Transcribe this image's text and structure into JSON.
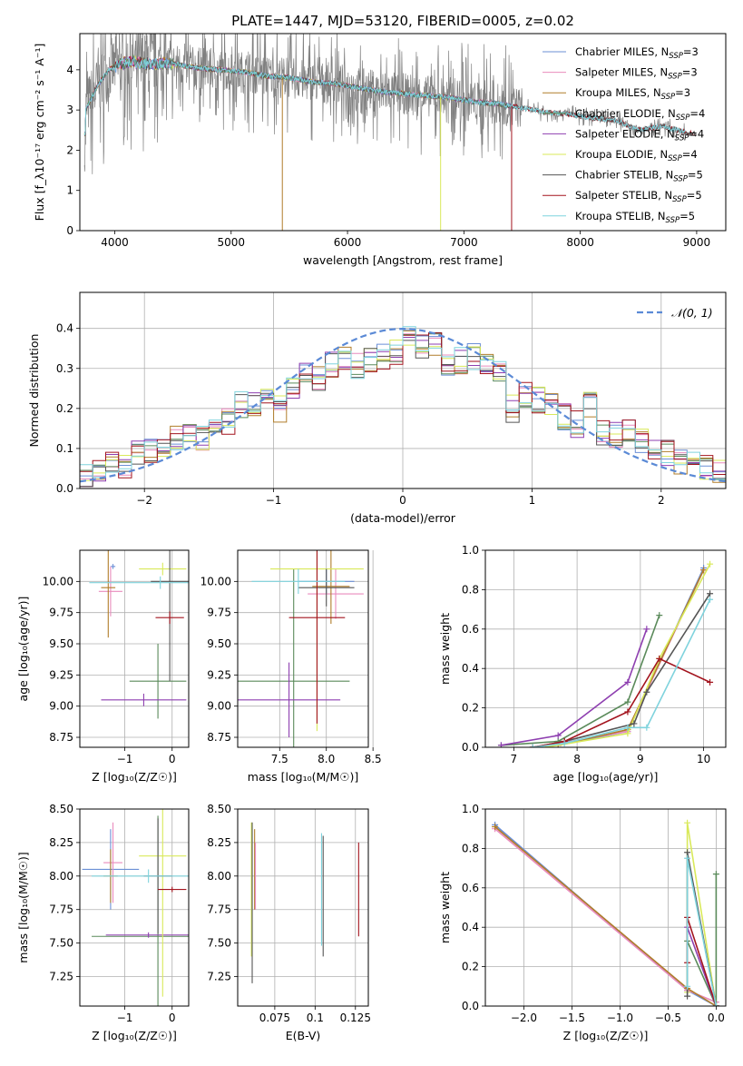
{
  "figure": {
    "title": "PLATE=1447, MJD=53120, FIBERID=0005, z=0.02"
  },
  "colors": [
    "#6b8fd6",
    "#e98bbd",
    "#b07d2a",
    "#5a8a5a",
    "#8e3fb0",
    "#d9e95a",
    "#555555",
    "#a3141e",
    "#7fd3dd"
  ],
  "chart_data": [
    {
      "id": "spectrum",
      "type": "line",
      "xlabel": "wavelength [Angstrom, rest frame]",
      "ylabel": "Flux [f_λ10⁻¹⁷ erg cm⁻² s⁻¹ A⁻¹]",
      "xlim": [
        3700,
        9250
      ],
      "ylim": [
        0,
        4.9
      ],
      "xticks": [
        4000,
        5000,
        6000,
        7000,
        8000,
        9000
      ],
      "yticks": [
        0,
        1,
        2,
        3,
        4
      ],
      "legend": "top-right",
      "series": [
        {
          "name": "Chabrier MILES, N_SSP=3",
          "color": "#6b8fd6"
        },
        {
          "name": "Salpeter MILES, N_SSP=3",
          "color": "#e98bbd"
        },
        {
          "name": "Kroupa MILES, N_SSP=3",
          "color": "#b07d2a"
        },
        {
          "name": "Chabrier ELODIE, N_SSP=4",
          "color": "#5a8a5a"
        },
        {
          "name": "Salpeter ELODIE, N_SSP=4",
          "color": "#8e3fb0"
        },
        {
          "name": "Kroupa ELODIE, N_SSP=4",
          "color": "#d9e95a"
        },
        {
          "name": "Chabrier STELIB, N_SSP=5",
          "color": "#555555"
        },
        {
          "name": "Salpeter STELIB, N_SSP=5",
          "color": "#a3141e"
        },
        {
          "name": "Kroupa STELIB, N_SSP=5",
          "color": "#7fd3dd"
        }
      ],
      "continuum": {
        "x": [
          3750,
          3850,
          3950,
          4050,
          4150,
          4300,
          4500,
          4700,
          4900,
          5100,
          5300,
          5500,
          5700,
          5900,
          6100,
          6300,
          6500,
          6700,
          6900,
          7100,
          7300,
          7500,
          7700,
          7900,
          8100,
          8300,
          8500,
          8700,
          8900,
          9000
        ],
        "y": [
          3.0,
          3.6,
          4.0,
          4.15,
          4.2,
          4.15,
          4.15,
          4.05,
          4.0,
          3.95,
          3.85,
          3.8,
          3.7,
          3.65,
          3.55,
          3.45,
          3.4,
          3.35,
          3.3,
          3.2,
          3.15,
          3.05,
          2.95,
          2.9,
          2.8,
          2.75,
          2.5,
          2.6,
          2.45,
          2.4
        ]
      }
    },
    {
      "id": "residuals",
      "type": "bar",
      "xlabel": "(data-model)/error",
      "ylabel": "Normed distribution",
      "xlim": [
        -2.5,
        2.5
      ],
      "ylim": [
        0,
        0.49
      ],
      "xticks": [
        -2,
        -1,
        0,
        1,
        2
      ],
      "yticks": [
        0.0,
        0.1,
        0.2,
        0.3,
        0.4
      ],
      "legend": "top-right",
      "reference": {
        "name": "𝒩(0, 1)",
        "color": "#5b8ad6"
      },
      "bin_width": 0.1,
      "bins_left": [
        -2.5,
        -2.4,
        -2.3,
        -2.2,
        -2.1,
        -2.0,
        -1.9,
        -1.8,
        -1.7,
        -1.6,
        -1.5,
        -1.4,
        -1.3,
        -1.2,
        -1.1,
        -1.0,
        -0.9,
        -0.8,
        -0.7,
        -0.6,
        -0.5,
        -0.4,
        -0.3,
        -0.2,
        -0.1,
        0.0,
        0.1,
        0.2,
        0.3,
        0.4,
        0.5,
        0.6,
        0.7,
        0.8,
        0.9,
        1.0,
        1.1,
        1.2,
        1.3,
        1.4,
        1.5,
        1.6,
        1.7,
        1.8,
        1.9,
        2.0,
        2.1,
        2.2,
        2.3,
        2.4
      ],
      "values": [
        0.03,
        0.04,
        0.06,
        0.06,
        0.09,
        0.09,
        0.1,
        0.13,
        0.15,
        0.13,
        0.17,
        0.17,
        0.21,
        0.21,
        0.23,
        0.2,
        0.25,
        0.29,
        0.27,
        0.31,
        0.33,
        0.31,
        0.32,
        0.33,
        0.34,
        0.38,
        0.35,
        0.36,
        0.31,
        0.32,
        0.33,
        0.31,
        0.3,
        0.2,
        0.23,
        0.22,
        0.21,
        0.18,
        0.16,
        0.21,
        0.14,
        0.13,
        0.14,
        0.12,
        0.09,
        0.09,
        0.07,
        0.06,
        0.05,
        0.04
      ]
    },
    {
      "id": "age-vs-Z",
      "type": "scatter",
      "xlabel": "Z [log₁₀(Z/Z☉)]",
      "ylabel": "age  [log₁₀(age/yr)]",
      "xlim": [
        -1.95,
        0.35
      ],
      "ylim": [
        8.67,
        10.25
      ],
      "xticks": [
        -1,
        0
      ],
      "yticks": [
        8.75,
        9.0,
        9.25,
        9.5,
        9.75,
        10.0
      ],
      "points": [
        {
          "x": -1.25,
          "y": 10.12,
          "xerr": 0.05,
          "yerr": 0.02,
          "c": 0
        },
        {
          "x": -1.3,
          "y": 9.92,
          "xerr": 0.25,
          "yerr": 0.2,
          "c": 1
        },
        {
          "x": -1.35,
          "y": 9.95,
          "xerr": 0.15,
          "yerr": 0.4,
          "c": 2
        },
        {
          "x": -0.3,
          "y": 9.2,
          "xerr": 0.6,
          "yerr": 0.3,
          "c": 3
        },
        {
          "x": -0.6,
          "y": 9.05,
          "xerr": 0.9,
          "yerr": 0.05,
          "c": 4
        },
        {
          "x": -0.2,
          "y": 10.1,
          "xerr": 0.5,
          "yerr": 0.05,
          "c": 5
        },
        {
          "x": -0.05,
          "y": 10.0,
          "xerr": 0.4,
          "yerr": 0.8,
          "c": 6
        },
        {
          "x": -0.05,
          "y": 9.71,
          "xerr": 0.3,
          "yerr": 0.05,
          "c": 7
        },
        {
          "x": -0.25,
          "y": 9.99,
          "xerr": 1.5,
          "yerr": 0.05,
          "c": 8
        }
      ]
    },
    {
      "id": "age-vs-mass",
      "type": "scatter",
      "xlabel": "mass [log₁₀(M/M☉)]",
      "ylabel": "",
      "xlim": [
        7.05,
        8.45
      ],
      "ylim": [
        8.67,
        10.25
      ],
      "xticks": [
        7.5,
        8.0,
        8.5
      ],
      "yticks": [
        8.75,
        9.0,
        9.25,
        9.5,
        9.75,
        10.0
      ],
      "points": [
        {
          "x": 8.0,
          "y": 10.0,
          "xerr": 0.3,
          "yerr": 0.1,
          "c": 0
        },
        {
          "x": 8.1,
          "y": 9.9,
          "xerr": 0.3,
          "yerr": 0.2,
          "c": 1
        },
        {
          "x": 8.05,
          "y": 9.96,
          "xerr": 0.2,
          "yerr": 0.3,
          "c": 2
        },
        {
          "x": 7.65,
          "y": 9.2,
          "xerr": 0.6,
          "yerr": 0.9,
          "c": 3
        },
        {
          "x": 7.6,
          "y": 9.05,
          "xerr": 0.55,
          "yerr": 0.3,
          "c": 4
        },
        {
          "x": 7.9,
          "y": 10.1,
          "xerr": 0.5,
          "yerr": 1.3,
          "c": 5
        },
        {
          "x": 8.0,
          "y": 9.95,
          "xerr": 0.3,
          "yerr": 0.15,
          "c": 6
        },
        {
          "x": 7.9,
          "y": 9.71,
          "xerr": 0.3,
          "yerr": 0.85,
          "c": 7
        },
        {
          "x": 7.7,
          "y": 10.0,
          "xerr": 0.5,
          "yerr": 0.1,
          "c": 8
        }
      ]
    },
    {
      "id": "weight-vs-age",
      "type": "line",
      "xlabel": "age  [log₁₀(age/yr)]",
      "ylabel": "mass weight",
      "xlim": [
        6.55,
        10.35
      ],
      "ylim": [
        0,
        1.0
      ],
      "xticks": [
        7,
        8,
        9,
        10
      ],
      "yticks": [
        0.0,
        0.2,
        0.4,
        0.6,
        0.8,
        1.0
      ],
      "series": [
        {
          "c": 0,
          "x": [
            7.7,
            8.8,
            10.0
          ],
          "y": [
            0.01,
            0.08,
            0.91
          ]
        },
        {
          "c": 1,
          "x": [
            7.7,
            8.8,
            10.0
          ],
          "y": [
            0.02,
            0.08,
            0.9
          ]
        },
        {
          "c": 2,
          "x": [
            7.7,
            8.8,
            10.0
          ],
          "y": [
            0.01,
            0.09,
            0.9
          ]
        },
        {
          "c": 3,
          "x": [
            6.8,
            7.7,
            8.8,
            9.3
          ],
          "y": [
            0.01,
            0.03,
            0.23,
            0.67
          ]
        },
        {
          "c": 4,
          "x": [
            6.8,
            7.7,
            8.8,
            9.1
          ],
          "y": [
            0.01,
            0.06,
            0.33,
            0.6
          ]
        },
        {
          "c": 5,
          "x": [
            7.5,
            8.8,
            9.3,
            10.1
          ],
          "y": [
            0.0,
            0.07,
            0.45,
            0.93
          ]
        },
        {
          "c": 6,
          "x": [
            7.3,
            7.8,
            8.9,
            9.1,
            10.1
          ],
          "y": [
            0.0,
            0.03,
            0.12,
            0.28,
            0.78
          ]
        },
        {
          "c": 7,
          "x": [
            7.3,
            7.8,
            8.8,
            9.3,
            10.1
          ],
          "y": [
            0.0,
            0.03,
            0.18,
            0.45,
            0.33
          ]
        },
        {
          "c": 8,
          "x": [
            7.3,
            7.8,
            8.8,
            9.1,
            10.1
          ],
          "y": [
            0.0,
            0.02,
            0.1,
            0.1,
            0.75
          ]
        }
      ]
    },
    {
      "id": "mass-vs-Z",
      "type": "scatter",
      "xlabel": "Z [log₁₀(Z/Z☉)]",
      "ylabel": "mass [log₁₀(M/M☉)]",
      "xlim": [
        -1.95,
        0.35
      ],
      "ylim": [
        7.03,
        8.5
      ],
      "xticks": [
        -1,
        0
      ],
      "yticks": [
        7.25,
        7.5,
        7.75,
        8.0,
        8.25,
        8.5
      ],
      "points": [
        {
          "x": -1.3,
          "y": 8.05,
          "xerr": 0.6,
          "yerr": 0.3,
          "c": 0
        },
        {
          "x": -1.25,
          "y": 8.1,
          "xerr": 0.2,
          "yerr": 0.3,
          "c": 1
        },
        {
          "x": -1.3,
          "y": 8.0,
          "xerr": 0.15,
          "yerr": 0.2,
          "c": 2
        },
        {
          "x": -0.3,
          "y": 7.55,
          "xerr": 1.4,
          "yerr": 0.9,
          "c": 3
        },
        {
          "x": -0.5,
          "y": 7.56,
          "xerr": 0.9,
          "yerr": 0.02,
          "c": 4
        },
        {
          "x": -0.2,
          "y": 8.15,
          "xerr": 0.5,
          "yerr": 1.05,
          "c": 5
        },
        {
          "x": -0.3,
          "y": 8.0,
          "xerr": 0.3,
          "yerr": 0.43,
          "c": 6
        },
        {
          "x": 0.0,
          "y": 7.9,
          "xerr": 0.3,
          "yerr": 0.02,
          "c": 7
        },
        {
          "x": -0.5,
          "y": 8.0,
          "xerr": 1.2,
          "yerr": 0.05,
          "c": 8
        }
      ]
    },
    {
      "id": "mass-vs-ebv",
      "type": "scatter",
      "xlabel": "E(B-V)",
      "ylabel": "",
      "xlim": [
        0.052,
        0.133
      ],
      "ylim": [
        7.03,
        8.5
      ],
      "xticks": [
        0.075,
        0.1,
        0.125
      ],
      "yticks": [
        7.25,
        7.5,
        7.75,
        8.0,
        8.25,
        8.5
      ],
      "points": [
        {
          "x": 0.0605,
          "y": 7.9,
          "yerr": 0.5,
          "c": 5
        },
        {
          "x": 0.061,
          "y": 7.8,
          "yerr": 0.6,
          "c": 6
        },
        {
          "x": 0.0625,
          "y": 8.05,
          "yerr": 0.3,
          "c": 2
        },
        {
          "x": 0.063,
          "y": 8.0,
          "yerr": 0.25,
          "c": 1
        },
        {
          "x": 0.104,
          "y": 7.9,
          "yerr": 0.42,
          "c": 8
        },
        {
          "x": 0.105,
          "y": 7.85,
          "yerr": 0.45,
          "c": 6
        },
        {
          "x": 0.127,
          "y": 7.9,
          "yerr": 0.35,
          "c": 7
        }
      ]
    },
    {
      "id": "weight-vs-Z",
      "type": "line",
      "xlabel": "Z [log₁₀(Z/Z☉)]",
      "ylabel": "mass weight",
      "xlim": [
        -2.4,
        0.1
      ],
      "ylim": [
        0,
        1.0
      ],
      "xticks": [
        -2.0,
        -1.5,
        -1.0,
        -0.5,
        0.0
      ],
      "yticks": [
        0.0,
        0.2,
        0.4,
        0.6,
        0.8,
        1.0
      ],
      "series": [
        {
          "c": 0,
          "x": [
            -2.3,
            -0.3,
            0.0
          ],
          "y": [
            0.92,
            0.08,
            0.0
          ]
        },
        {
          "c": 1,
          "x": [
            -2.3,
            -0.3,
            0.0
          ],
          "y": [
            0.9,
            0.08,
            0.02
          ]
        },
        {
          "c": 2,
          "x": [
            -2.3,
            -0.3,
            0.0
          ],
          "y": [
            0.91,
            0.09,
            0.0
          ]
        },
        {
          "c": 3,
          "x": [
            -0.3,
            0.0,
            0.0
          ],
          "y": [
            0.33,
            0.0,
            0.67
          ]
        },
        {
          "c": 4,
          "x": [
            -0.3,
            0.0
          ],
          "y": [
            0.4,
            0.0
          ]
        },
        {
          "c": 5,
          "x": [
            -0.3,
            -0.3,
            0.0
          ],
          "y": [
            0.07,
            0.93,
            0.0
          ]
        },
        {
          "c": 6,
          "x": [
            -0.3,
            -0.3,
            0.0
          ],
          "y": [
            0.05,
            0.78,
            0.0
          ]
        },
        {
          "c": 7,
          "x": [
            -0.3,
            -0.3,
            0.0
          ],
          "y": [
            0.22,
            0.45,
            0.0
          ]
        },
        {
          "c": 8,
          "x": [
            -0.3,
            -0.3,
            0.0
          ],
          "y": [
            0.1,
            0.75,
            0.0
          ]
        }
      ]
    }
  ]
}
